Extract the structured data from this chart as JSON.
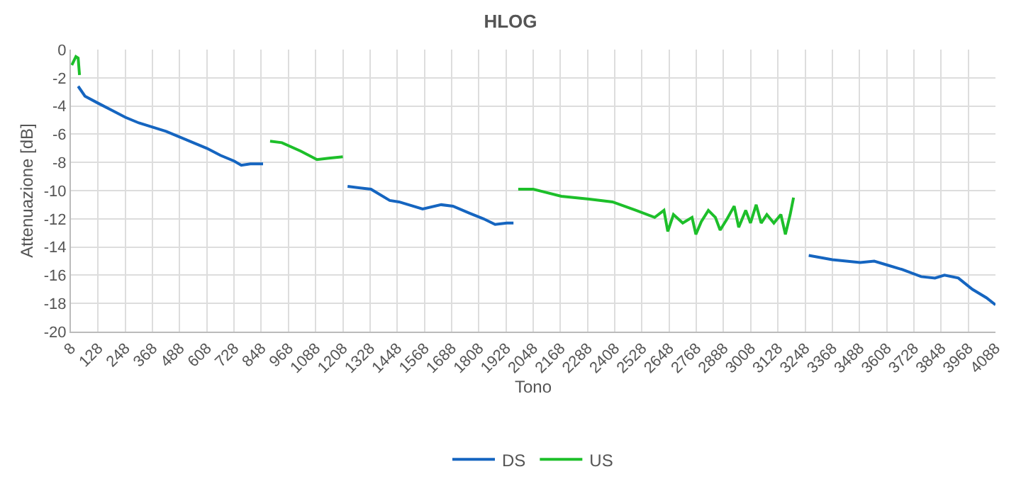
{
  "chart_data": {
    "type": "line",
    "title": "HLOG",
    "xlabel": "Tono",
    "ylabel": "Attenuazione [dB]",
    "xlim": [
      8,
      4088
    ],
    "xticks": [
      8,
      128,
      248,
      368,
      488,
      608,
      728,
      848,
      968,
      1088,
      1208,
      1328,
      1448,
      1568,
      1688,
      1808,
      1928,
      2048,
      2168,
      2288,
      2408,
      2528,
      2648,
      2768,
      2888,
      3008,
      3128,
      3248,
      3368,
      3488,
      3608,
      3728,
      3848,
      3968,
      4088
    ],
    "ylim": [
      -20,
      0
    ],
    "yticks": [
      -20,
      -18,
      -16,
      -14,
      -12,
      -10,
      -8,
      -6,
      -4,
      -2,
      0
    ],
    "grid": true,
    "legend": "bottom",
    "marker": "none",
    "line_style": "solid",
    "series": [
      {
        "name": "DS",
        "color": "#1565c0",
        "x": [
          40,
          70,
          128,
          188,
          248,
          308,
          368,
          428,
          488,
          548,
          608,
          668,
          728,
          760,
          800,
          856,
          1000,
          1229,
          1332,
          1415,
          1456,
          1560,
          1642,
          1694,
          1767,
          1829,
          1880,
          1932,
          1961,
          2600,
          3264,
          3368,
          3491,
          3553,
          3615,
          3677,
          3760,
          3821,
          3863,
          3924,
          3986,
          4048,
          4088
        ],
        "values": [
          -2.6,
          -3.3,
          -3.8,
          -4.3,
          -4.8,
          -5.2,
          -5.5,
          -5.8,
          -6.2,
          -6.6,
          -7.0,
          -7.5,
          -7.9,
          -8.2,
          -8.1,
          -8.1,
          null,
          -9.7,
          -9.9,
          -10.7,
          -10.8,
          -11.3,
          -11.0,
          -11.1,
          -11.6,
          -12.0,
          -12.4,
          -12.3,
          -12.3,
          null,
          -14.6,
          -14.9,
          -15.1,
          -15.0,
          -15.3,
          -15.6,
          -16.1,
          -16.2,
          -16.0,
          -16.2,
          -17.0,
          -17.6,
          -18.1
        ]
      },
      {
        "name": "US",
        "color": "#1dbf2a",
        "x": [
          12,
          30,
          40,
          46,
          500,
          887,
          939,
          1022,
          1094,
          1146,
          1208,
          1600,
          1982,
          2048,
          2172,
          2295,
          2398,
          2502,
          2584,
          2625,
          2642,
          2667,
          2708,
          2749,
          2766,
          2790,
          2821,
          2852,
          2873,
          2904,
          2935,
          2955,
          2986,
          3007,
          3032,
          3054,
          3079,
          3110,
          3141,
          3161,
          3182,
          3197
        ],
        "values": [
          -1.1,
          -0.5,
          -0.6,
          -1.8,
          null,
          -6.5,
          -6.6,
          -7.2,
          -7.8,
          -7.7,
          -7.6,
          null,
          -9.9,
          -9.9,
          -10.4,
          -10.6,
          -10.8,
          -11.4,
          -11.9,
          -11.4,
          -12.9,
          -11.7,
          -12.3,
          -11.9,
          -13.1,
          -12.2,
          -11.4,
          -11.9,
          -12.8,
          -12.0,
          -11.1,
          -12.6,
          -11.4,
          -12.3,
          -11.0,
          -12.3,
          -11.7,
          -12.3,
          -11.7,
          -13.1,
          -11.7,
          -10.5
        ]
      }
    ]
  }
}
